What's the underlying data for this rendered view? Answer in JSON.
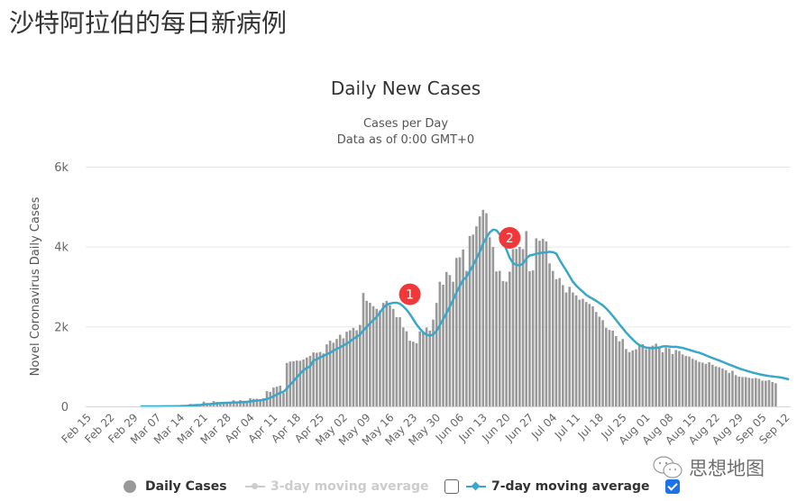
{
  "page": {
    "title": "沙特阿拉伯的每日新病例"
  },
  "chart": {
    "title": "Daily New Cases",
    "subtitle_line1": "Cases per Day",
    "subtitle_line2": "Data as of 0:00 GMT+0",
    "ylabel": "Novel Coronavirus Daily Cases"
  },
  "legend": {
    "daily_cases": "Daily Cases",
    "three_day": "3-day moving average",
    "seven_day": "7-day moving average",
    "three_day_checked": false,
    "seven_day_checked": true
  },
  "annotations": [
    {
      "label": "1",
      "date_index": 81
    },
    {
      "label": "2",
      "date_index": 111
    }
  ],
  "watermark": {
    "text": "思想地图"
  },
  "colors": {
    "bar": "#999999",
    "line7": "#3aa6c8",
    "line3_legend": "#cccccc",
    "annotation": "#f0373a",
    "grid": "#e6e6e6",
    "axis": "#ccd6eb"
  },
  "chart_data": {
    "type": "bar",
    "title": "Daily New Cases",
    "subtitle": "Cases per Day — Data as of 0:00 GMT+0",
    "xlabel": "",
    "ylabel": "Novel Coronavirus Daily Cases",
    "ylim": [
      0,
      6000
    ],
    "yticks": [
      "0",
      "2k",
      "4k",
      "6k"
    ],
    "grid": true,
    "legend_position": "bottom",
    "x_start": "Feb 15",
    "x_end": "Sep 14",
    "xticks": [
      "Feb 15",
      "Feb 22",
      "Feb 29",
      "Mar 07",
      "Mar 14",
      "Mar 21",
      "Mar 28",
      "Apr 04",
      "Apr 11",
      "Apr 18",
      "Apr 25",
      "May 02",
      "May 09",
      "May 16",
      "May 23",
      "May 30",
      "Jun 06",
      "Jun 13",
      "Jun 20",
      "Jun 27",
      "Jul 04",
      "Jul 11",
      "Jul 18",
      "Jul 25",
      "Aug 01",
      "Aug 08",
      "Aug 15",
      "Aug 22",
      "Aug 29",
      "Sep 05",
      "Sep 12"
    ],
    "first_bar_date": "Mar 02",
    "series": [
      {
        "name": "Daily Cases",
        "values": [
          1,
          0,
          0,
          2,
          0,
          0,
          2,
          4,
          6,
          5,
          0,
          24,
          17,
          33,
          15,
          62,
          38,
          51,
          24,
          119,
          70,
          51,
          133,
          112,
          92,
          92,
          99,
          96,
          154,
          110,
          157,
          140,
          138,
          203,
          190,
          191,
          140,
          205,
          382,
          364,
          472,
          493,
          518,
          336,
          1088,
          1122,
          1132,
          1147,
          1141,
          1172,
          1223,
          1266,
          1351,
          1344,
          1362,
          1325,
          1552,
          1645,
          1595,
          1687,
          1793,
          1704,
          1869,
          1905,
          1966,
          1905,
          2039,
          2840,
          2642,
          2593,
          2509,
          2442,
          2399,
          2591,
          2642,
          2532,
          2442,
          2235,
          2232,
          1975,
          1881,
          1644,
          1618,
          1581,
          1877,
          1869,
          1975,
          1897,
          2171,
          2591,
          3121,
          3045,
          3366,
          3288,
          3121,
          3717,
          3733,
          3927,
          3393,
          4267,
          4301,
          4507,
          4757,
          4919,
          4835,
          4233,
          3989,
          3379,
          3392,
          3139,
          3123,
          3372,
          3938,
          3942,
          3995,
          3938,
          4387,
          3383,
          3402,
          4207,
          4146,
          4193,
          4128,
          3580,
          3392,
          3183,
          3211,
          3036,
          2852,
          2994,
          2852,
          2779,
          2671,
          2692,
          2613,
          2565,
          2504,
          2363,
          2245,
          2157,
          1968,
          1914,
          1897,
          1759,
          1629,
          1686,
          1436,
          1357,
          1402,
          1429,
          1521,
          1556,
          1432,
          1482,
          1521,
          1569,
          1498,
          1355,
          1469,
          1454,
          1309,
          1412,
          1386,
          1302,
          1262,
          1248,
          1191,
          1159,
          1113,
          1097,
          1066,
          1106,
          1042,
          1002,
          980,
          949,
          907,
          838,
          892,
          782,
          745,
          735,
          734,
          716,
          700,
          710,
          690,
          643,
          641,
          657,
          611,
          580
        ],
        "color": "#999999"
      },
      {
        "name": "7-day moving average",
        "values": [
          1,
          1,
          1,
          1,
          1,
          1,
          1,
          2,
          3,
          3,
          3,
          6,
          8,
          12,
          14,
          22,
          27,
          33,
          35,
          50,
          55,
          59,
          68,
          74,
          81,
          87,
          91,
          92,
          98,
          100,
          105,
          108,
          113,
          124,
          135,
          145,
          153,
          163,
          185,
          215,
          255,
          296,
          341,
          367,
          446,
          539,
          634,
          727,
          818,
          906,
          963,
          1002,
          1148,
          1177,
          1227,
          1263,
          1306,
          1341,
          1394,
          1441,
          1475,
          1524,
          1573,
          1624,
          1690,
          1743,
          1799,
          1899,
          1991,
          2078,
          2160,
          2239,
          2355,
          2466,
          2545,
          2573,
          2593,
          2595,
          2570,
          2505,
          2420,
          2310,
          2181,
          2050,
          1946,
          1854,
          1794,
          1770,
          1800,
          1887,
          2033,
          2181,
          2335,
          2498,
          2664,
          2852,
          3011,
          3166,
          3240,
          3383,
          3530,
          3700,
          3863,
          4072,
          4224,
          4355,
          4423,
          4408,
          4306,
          4134,
          3931,
          3721,
          3586,
          3543,
          3530,
          3573,
          3699,
          3776,
          3795,
          3819,
          3836,
          3851,
          3855,
          3870,
          3860,
          3826,
          3671,
          3532,
          3403,
          3261,
          3122,
          3024,
          2943,
          2871,
          2793,
          2740,
          2690,
          2642,
          2586,
          2530,
          2453,
          2364,
          2266,
          2162,
          2055,
          1955,
          1851,
          1759,
          1675,
          1597,
          1535,
          1497,
          1473,
          1467,
          1459,
          1465,
          1474,
          1500,
          1505,
          1496,
          1488,
          1491,
          1477,
          1464,
          1439,
          1415,
          1390,
          1364,
          1344,
          1313,
          1277,
          1243,
          1211,
          1180,
          1149,
          1116,
          1081,
          1047,
          1016,
          983,
          950,
          923,
          898,
          873,
          848,
          828,
          806,
          789,
          773,
          760,
          750,
          740,
          731,
          716,
          696,
          676
        ],
        "color": "#3aa6c8"
      }
    ]
  }
}
